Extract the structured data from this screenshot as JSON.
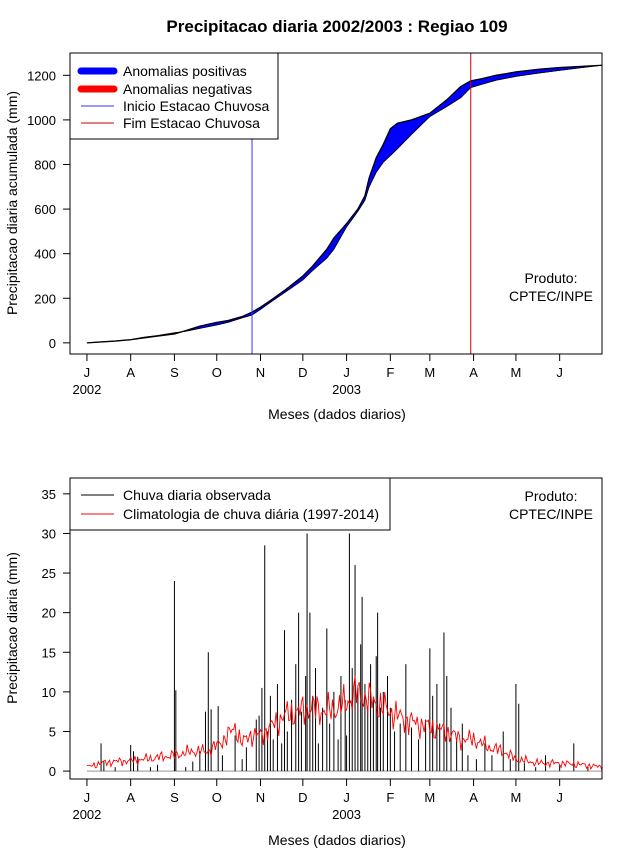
{
  "colors": {
    "positive": "#0000ff",
    "negative": "#ff0000",
    "inicio": "#3333ff",
    "fim": "#cc0000",
    "observed": "#000000",
    "climatology": "#ff0000"
  },
  "chart_data": [
    {
      "type": "area",
      "title": "Precipitacao diaria 2002/2003 : Regiao 109",
      "xlabel": "Meses (dados diarios)",
      "ylabel": "Precipitacao diaria acumulada (mm)",
      "x_unit": "days since 2002-07-01",
      "xlim": [
        -12,
        365
      ],
      "ylim": [
        -50,
        1300
      ],
      "month_ticks": [
        0,
        31,
        62,
        92,
        123,
        153,
        184,
        215,
        243,
        274,
        304,
        335
      ],
      "month_labels": [
        "J",
        "A",
        "S",
        "O",
        "N",
        "D",
        "J",
        "F",
        "M",
        "A",
        "M",
        "J"
      ],
      "year_labels": [
        {
          "x": 0,
          "label": "2002"
        },
        {
          "x": 184,
          "label": "2003"
        }
      ],
      "yticks": [
        0,
        200,
        400,
        600,
        800,
        1000,
        1200
      ],
      "legend": [
        "Anomalias positivas",
        "Anomalias negativas",
        "Inicio Estacao Chuvosa",
        "Fim Estacao Chuvosa"
      ],
      "legend_position": "top-left",
      "annotation": [
        "Produto:",
        "CPTEC/INPE"
      ],
      "inicio_estacao_chuvosa_day": 117,
      "fim_estacao_chuvosa_day": 272,
      "observed_cumulative": [
        [
          0,
          0
        ],
        [
          10,
          4
        ],
        [
          20,
          8
        ],
        [
          31,
          14
        ],
        [
          40,
          22
        ],
        [
          50,
          30
        ],
        [
          62,
          40
        ],
        [
          70,
          55
        ],
        [
          80,
          75
        ],
        [
          92,
          92
        ],
        [
          100,
          100
        ],
        [
          110,
          118
        ],
        [
          117,
          138
        ],
        [
          123,
          160
        ],
        [
          130,
          190
        ],
        [
          140,
          235
        ],
        [
          153,
          300
        ],
        [
          160,
          345
        ],
        [
          170,
          420
        ],
        [
          175,
          470
        ],
        [
          184,
          535
        ],
        [
          192,
          600
        ],
        [
          197,
          660
        ],
        [
          200,
          740
        ],
        [
          205,
          830
        ],
        [
          210,
          890
        ],
        [
          215,
          960
        ],
        [
          220,
          985
        ],
        [
          230,
          1000
        ],
        [
          243,
          1030
        ],
        [
          255,
          1090
        ],
        [
          265,
          1150
        ],
        [
          272,
          1175
        ],
        [
          280,
          1185
        ],
        [
          290,
          1200
        ],
        [
          304,
          1215
        ],
        [
          320,
          1227
        ],
        [
          335,
          1235
        ],
        [
          350,
          1240
        ],
        [
          365,
          1245
        ]
      ],
      "climatology_cumulative": [
        [
          0,
          0
        ],
        [
          10,
          4
        ],
        [
          20,
          8
        ],
        [
          31,
          15
        ],
        [
          40,
          25
        ],
        [
          50,
          33
        ],
        [
          62,
          45
        ],
        [
          70,
          52
        ],
        [
          80,
          65
        ],
        [
          92,
          80
        ],
        [
          100,
          92
        ],
        [
          110,
          112
        ],
        [
          117,
          125
        ],
        [
          123,
          150
        ],
        [
          130,
          182
        ],
        [
          140,
          225
        ],
        [
          153,
          282
        ],
        [
          160,
          325
        ],
        [
          170,
          380
        ],
        [
          175,
          420
        ],
        [
          184,
          520
        ],
        [
          192,
          590
        ],
        [
          197,
          640
        ],
        [
          200,
          700
        ],
        [
          205,
          765
        ],
        [
          210,
          810
        ],
        [
          215,
          840
        ],
        [
          220,
          870
        ],
        [
          230,
          935
        ],
        [
          243,
          1015
        ],
        [
          255,
          1060
        ],
        [
          265,
          1100
        ],
        [
          272,
          1145
        ],
        [
          280,
          1160
        ],
        [
          290,
          1178
        ],
        [
          304,
          1195
        ],
        [
          320,
          1210
        ],
        [
          335,
          1222
        ],
        [
          350,
          1234
        ],
        [
          365,
          1245
        ]
      ]
    },
    {
      "type": "bar",
      "xlabel": "Meses (dados diarios)",
      "ylabel": "Precipitacao diaria (mm)",
      "x_unit": "days since 2002-07-01",
      "xlim": [
        -12,
        365
      ],
      "ylim": [
        -1,
        37
      ],
      "month_ticks": [
        0,
        31,
        62,
        92,
        123,
        153,
        184,
        215,
        243,
        274,
        304,
        335
      ],
      "month_labels": [
        "J",
        "A",
        "S",
        "O",
        "N",
        "D",
        "J",
        "F",
        "M",
        "A",
        "M",
        "J"
      ],
      "year_labels": [
        {
          "x": 0,
          "label": "2002"
        },
        {
          "x": 184,
          "label": "2003"
        }
      ],
      "yticks": [
        0,
        5,
        10,
        15,
        20,
        25,
        30,
        35
      ],
      "legend": [
        "Chuva diaria observada",
        "Climatologia de chuva diária (1997-2014)"
      ],
      "legend_position": "top-left",
      "annotation": [
        "Produto:",
        "CPTEC/INPE"
      ],
      "observed_daily": [
        [
          10,
          3.5
        ],
        [
          12,
          1.2
        ],
        [
          20,
          0.5
        ],
        [
          31,
          3.3
        ],
        [
          33,
          2.5
        ],
        [
          36,
          1.8
        ],
        [
          45,
          0.5
        ],
        [
          50,
          0.8
        ],
        [
          62,
          24
        ],
        [
          63,
          10.2
        ],
        [
          70,
          0.5
        ],
        [
          75,
          1.2
        ],
        [
          80,
          2.5
        ],
        [
          84,
          7.5
        ],
        [
          86,
          15
        ],
        [
          88,
          7.8
        ],
        [
          93,
          8.2
        ],
        [
          96,
          2
        ],
        [
          105,
          4.5
        ],
        [
          110,
          1.5
        ],
        [
          113,
          3
        ],
        [
          120,
          6.5
        ],
        [
          122,
          7
        ],
        [
          124,
          10.5
        ],
        [
          126,
          28.5
        ],
        [
          128,
          5
        ],
        [
          130,
          9.5
        ],
        [
          132,
          4
        ],
        [
          135,
          11
        ],
        [
          138,
          3.5
        ],
        [
          140,
          17.8
        ],
        [
          142,
          5
        ],
        [
          145,
          9
        ],
        [
          148,
          13.5
        ],
        [
          150,
          20
        ],
        [
          152,
          7.5
        ],
        [
          155,
          12
        ],
        [
          156,
          30
        ],
        [
          158,
          20
        ],
        [
          160,
          9.5
        ],
        [
          162,
          13
        ],
        [
          164,
          3.5
        ],
        [
          167,
          8
        ],
        [
          170,
          18
        ],
        [
          172,
          6
        ],
        [
          175,
          10
        ],
        [
          178,
          4
        ],
        [
          180,
          12
        ],
        [
          183,
          9
        ],
        [
          184,
          4.5
        ],
        [
          186,
          30
        ],
        [
          188,
          13
        ],
        [
          190,
          26
        ],
        [
          192,
          10.5
        ],
        [
          194,
          16
        ],
        [
          195,
          22
        ],
        [
          197,
          11
        ],
        [
          199,
          8
        ],
        [
          201,
          13.5
        ],
        [
          203,
          9
        ],
        [
          205,
          14.5
        ],
        [
          206,
          20
        ],
        [
          208,
          8
        ],
        [
          210,
          10
        ],
        [
          213,
          12
        ],
        [
          215,
          8
        ],
        [
          218,
          5
        ],
        [
          222,
          6
        ],
        [
          226,
          13.5
        ],
        [
          230,
          5.5
        ],
        [
          235,
          4
        ],
        [
          240,
          6.5
        ],
        [
          243,
          15.5
        ],
        [
          245,
          9.5
        ],
        [
          248,
          11
        ],
        [
          250,
          6
        ],
        [
          253,
          17.5
        ],
        [
          255,
          12
        ],
        [
          258,
          8
        ],
        [
          262,
          4
        ],
        [
          266,
          6
        ],
        [
          270,
          2
        ],
        [
          276,
          1.5
        ],
        [
          282,
          3.5
        ],
        [
          287,
          2
        ],
        [
          295,
          5
        ],
        [
          300,
          1.5
        ],
        [
          304,
          11
        ],
        [
          306,
          8.5
        ],
        [
          310,
          1
        ],
        [
          318,
          0.5
        ],
        [
          325,
          2
        ],
        [
          335,
          0.8
        ],
        [
          345,
          3.5
        ],
        [
          355,
          0.5
        ]
      ],
      "climatology_daily": [
        [
          0,
          0.5
        ],
        [
          10,
          1.0
        ],
        [
          20,
          1.2
        ],
        [
          31,
          1.3
        ],
        [
          45,
          1.6
        ],
        [
          62,
          2.0
        ],
        [
          75,
          2.5
        ],
        [
          85,
          2.5
        ],
        [
          92,
          3.2
        ],
        [
          100,
          4.5
        ],
        [
          105,
          5.5
        ],
        [
          110,
          3.5
        ],
        [
          115,
          4.5
        ],
        [
          123,
          4.5
        ],
        [
          130,
          5.5
        ],
        [
          140,
          7.0
        ],
        [
          150,
          7.5
        ],
        [
          160,
          8.0
        ],
        [
          170,
          7.5
        ],
        [
          184,
          8.5
        ],
        [
          190,
          10.0
        ],
        [
          200,
          9.0
        ],
        [
          215,
          7.5
        ],
        [
          225,
          6.5
        ],
        [
          243,
          5.5
        ],
        [
          255,
          5.0
        ],
        [
          265,
          4.0
        ],
        [
          274,
          4.0
        ],
        [
          285,
          3.0
        ],
        [
          295,
          2.5
        ],
        [
          304,
          1.5
        ],
        [
          320,
          1.0
        ],
        [
          335,
          1.0
        ],
        [
          350,
          0.8
        ],
        [
          365,
          0.5
        ]
      ]
    }
  ]
}
